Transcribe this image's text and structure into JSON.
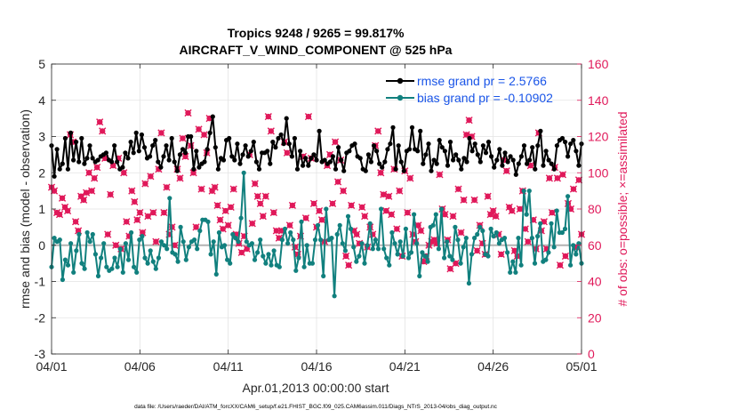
{
  "chart_data": {
    "type": "line",
    "title_line1": "Tropics 9248 / 9265 = 99.817%",
    "title_line2": "AIRCRAFT_V_WIND_COMPONENT @ 525 hPa",
    "xlabel": "Apr.01,2013 00:00:00 start",
    "ylabel_left": "rmse and bias (model - observation)",
    "ylabel_right": "# of obs: o=possible; ×=assimilated",
    "footnote": "data file: /Users/raeder/DAI/ATM_forcXX/CAM6_setup/f.e21.FHIST_BGC.f09_025.CAM6assim.011/Diags_NTrS_2013-04/obs_diag_output.nc",
    "xlim": [
      0,
      30
    ],
    "ylim_left": [
      -3,
      5
    ],
    "ylim_right": [
      0,
      160
    ],
    "x_ticks": [
      0,
      5,
      10,
      15,
      20,
      25,
      30
    ],
    "x_tick_labels": [
      "04/01",
      "04/06",
      "04/11",
      "04/16",
      "04/21",
      "04/26",
      "05/01"
    ],
    "y_ticks_left": [
      -3,
      -2,
      -1,
      0,
      1,
      2,
      3,
      4,
      5
    ],
    "y_tick_labels_left": [
      "-3",
      "-2",
      "-1",
      "0",
      "1",
      "2",
      "3",
      "4",
      "5"
    ],
    "y_ticks_right": [
      0,
      20,
      40,
      60,
      80,
      100,
      120,
      140,
      160
    ],
    "y_tick_labels_right": [
      "0",
      "20",
      "40",
      "60",
      "80",
      "100",
      "120",
      "140",
      "160"
    ],
    "grid": true,
    "legend_position": "top-right",
    "colors": {
      "rmse": "#000000",
      "bias": "#11807e",
      "obs": "#e0195a",
      "legend_text": "#1a55e8",
      "zero_line": "#b3b3b3"
    },
    "series": [
      {
        "name": "rmse grand pr = 2.5766",
        "values": [
          2.75,
          1.9,
          2.65,
          2.1,
          2.25,
          2.95,
          2.1,
          3.1,
          2.35,
          2.85,
          2.3,
          2.95,
          2.25,
          2.4,
          2.75,
          2.4,
          2.3,
          2.35,
          2.45,
          2.5,
          2.55,
          2.35,
          2.3,
          2.75,
          2.3,
          2.1,
          2.15,
          2.55,
          2.4,
          2.85,
          2.55,
          3.1,
          2.6,
          3.05,
          2.7,
          2.4,
          2.45,
          2.75,
          2.9,
          2.3,
          2.15,
          2.45,
          2.75,
          2.35,
          2.95,
          2.3,
          2.05,
          2.5,
          2.65,
          2.55,
          3.0,
          3.0,
          2.1,
          2.6,
          2.15,
          2.25,
          2.3,
          2.65,
          3.1,
          3.55,
          2.7,
          2.1,
          2.4,
          2.35,
          2.9,
          2.95,
          2.45,
          2.35,
          2.8,
          2.25,
          2.5,
          2.75,
          2.45,
          2.6,
          2.85,
          2.3,
          2.1,
          2.55,
          2.55,
          2.6,
          2.25,
          2.85,
          2.7,
          2.95,
          3.05,
          2.8,
          3.5,
          2.8,
          2.45,
          2.95,
          2.1,
          2.6,
          2.2,
          2.4,
          2.2,
          2.4,
          2.5,
          2.35,
          3.15,
          2.3,
          2.35,
          2.25,
          2.3,
          2.45,
          2.1,
          2.7,
          2.35,
          2.05,
          2.55,
          2.6,
          2.75,
          2.8,
          2.45,
          2.4,
          2.1,
          2.05,
          2.5,
          2.3,
          2.75,
          2.6,
          2.25,
          2.15,
          2.3,
          2.65,
          2.8,
          3.25,
          2.1,
          2.75,
          2.3,
          2.05,
          2.6,
          2.65,
          3.25,
          2.65,
          2.6,
          3.15,
          2.25,
          2.5,
          2.8,
          2.05,
          2.35,
          2.25,
          2.9,
          2.7,
          2.6,
          2.2,
          2.85,
          2.35,
          2.5,
          2.35,
          2.1,
          2.4,
          2.3,
          2.95,
          2.6,
          2.8,
          2.5,
          2.3,
          2.75,
          2.55,
          2.85,
          2.45,
          2.15,
          2.35,
          2.65,
          2.2,
          2.55,
          2.3,
          2.45,
          2.35,
          1.95,
          2.25,
          2.45,
          2.75,
          2.25,
          2.35,
          2.7,
          2.1,
          2.75,
          3.15,
          2.2,
          2.6,
          2.35,
          2.25,
          2.1,
          2.75,
          2.9,
          2.95,
          2.85,
          2.45,
          2.8,
          2.9,
          2.6,
          2.2,
          2.8
        ]
      },
      {
        "name": "bias grand pr = -0.10902",
        "values": [
          -0.6,
          0.2,
          0.1,
          0.15,
          -0.95,
          -0.4,
          -0.55,
          0.05,
          -0.75,
          -0.15,
          0.3,
          -0.5,
          -0.65,
          0.35,
          0.1,
          0.3,
          -0.25,
          -0.85,
          -0.35,
          0.05,
          -0.6,
          -0.7,
          -0.65,
          -0.35,
          -0.6,
          -0.1,
          -0.75,
          0.05,
          -0.4,
          0.35,
          -0.6,
          -0.75,
          0.15,
          0.25,
          -0.35,
          -0.5,
          -0.15,
          -0.45,
          -0.65,
          -0.35,
          0.1,
          0.0,
          -0.1,
          1.3,
          -0.2,
          -0.25,
          -0.45,
          0.5,
          0.1,
          -0.4,
          -0.05,
          0.1,
          0.15,
          -0.1,
          0.4,
          0.7,
          0.7,
          0.65,
          -0.25,
          0.1,
          -0.8,
          0.35,
          -0.05,
          0.0,
          -0.4,
          -0.5,
          0.3,
          0.2,
          0.1,
          0.75,
          2.0,
          0.1,
          0.0,
          0.05,
          -0.4,
          -0.2,
          0.15,
          -0.3,
          -0.5,
          -0.25,
          -0.55,
          -0.15,
          -0.55,
          -0.6,
          0.15,
          0.45,
          0.05,
          0.35,
          0.15,
          -0.7,
          -0.35,
          0.65,
          -0.6,
          0.0,
          -0.5,
          -0.5,
          0.15,
          0.55,
          0.15,
          -0.85,
          1.0,
          0.15,
          0.2,
          -1.4,
          0.3,
          0.55,
          0.05,
          -0.15,
          0.8,
          0.45,
          -0.05,
          -0.45,
          -0.3,
          0.05,
          -0.5,
          0.0,
          0.6,
          -0.1,
          0.15,
          -0.1,
          1.0,
          -0.1,
          -0.35,
          -0.55,
          0.35,
          0.05,
          -0.25,
          0.1,
          -0.3,
          0.45,
          -0.35,
          -0.2,
          0.85,
          0.05,
          -0.85,
          -0.2,
          -0.3,
          -0.45,
          0.5,
          0.55,
          0.85,
          -0.1,
          1.0,
          -0.35,
          0.1,
          -0.3,
          -0.4,
          0.5,
          0.15,
          -0.5,
          -0.05,
          0.2,
          -1.05,
          -0.25,
          0.2,
          0.3,
          0.5,
          0.4,
          -0.25,
          -0.3,
          0.45,
          0.25,
          0.35,
          0.05,
          0.15,
          0.2,
          -0.2,
          -0.75,
          -0.45,
          -0.75,
          0.2,
          -0.55,
          1.5,
          0.85,
          1.5,
          0.2,
          -0.5,
          0.25,
          0.6,
          -0.45,
          -0.4,
          -0.2,
          0.6,
          -0.05,
          0.95,
          0.35,
          0.35,
          0.45,
          1.35,
          -0.55,
          0.0,
          -0.25,
          0.05,
          -0.5
        ]
      }
    ],
    "obs_possible_values": [
      92,
      90,
      78,
      77,
      86,
      81,
      79,
      121,
      117,
      73,
      68,
      87,
      85,
      89,
      100,
      90,
      97,
      103,
      128,
      123,
      108,
      66,
      88,
      104,
      60,
      108,
      58,
      100,
      73,
      65,
      90,
      84,
      74,
      78,
      67,
      94,
      76,
      98,
      78,
      62,
      102,
      122,
      78,
      92,
      66,
      70,
      60,
      102,
      97,
      119,
      109,
      133,
      115,
      100,
      70,
      124,
      91,
      121,
      111,
      130,
      90,
      92,
      82,
      74,
      69,
      79,
      71,
      81,
      91,
      66,
      61,
      56,
      65,
      58,
      110,
      72,
      94,
      87,
      83,
      76,
      87,
      131,
      123,
      78,
      68,
      64,
      68,
      117,
      111,
      71,
      82,
      59,
      55,
      65,
      109,
      75,
      131,
      108,
      83,
      70,
      79,
      74,
      62,
      104,
      110,
      83,
      117,
      95,
      107,
      90,
      54,
      49,
      82,
      68,
      66,
      61,
      81,
      76,
      59,
      70,
      66,
      115,
      123,
      100,
      88,
      79,
      87,
      77,
      102,
      69,
      90,
      54,
      101,
      78,
      97,
      66,
      62,
      71,
      68,
      51,
      54,
      60,
      62,
      63,
      61,
      99,
      80,
      77,
      63,
      47,
      76,
      50,
      91,
      67,
      85,
      121,
      129,
      120,
      85,
      57,
      71,
      61,
      55,
      87,
      77,
      79,
      76,
      66,
      55,
      107,
      101,
      81,
      79,
      57,
      54,
      80,
      90,
      69,
      62,
      104,
      74,
      58,
      122,
      68,
      73,
      58,
      97,
      78,
      103,
      97,
      49,
      99,
      54,
      83,
      80,
      91,
      59,
      96,
      66
    ]
  }
}
